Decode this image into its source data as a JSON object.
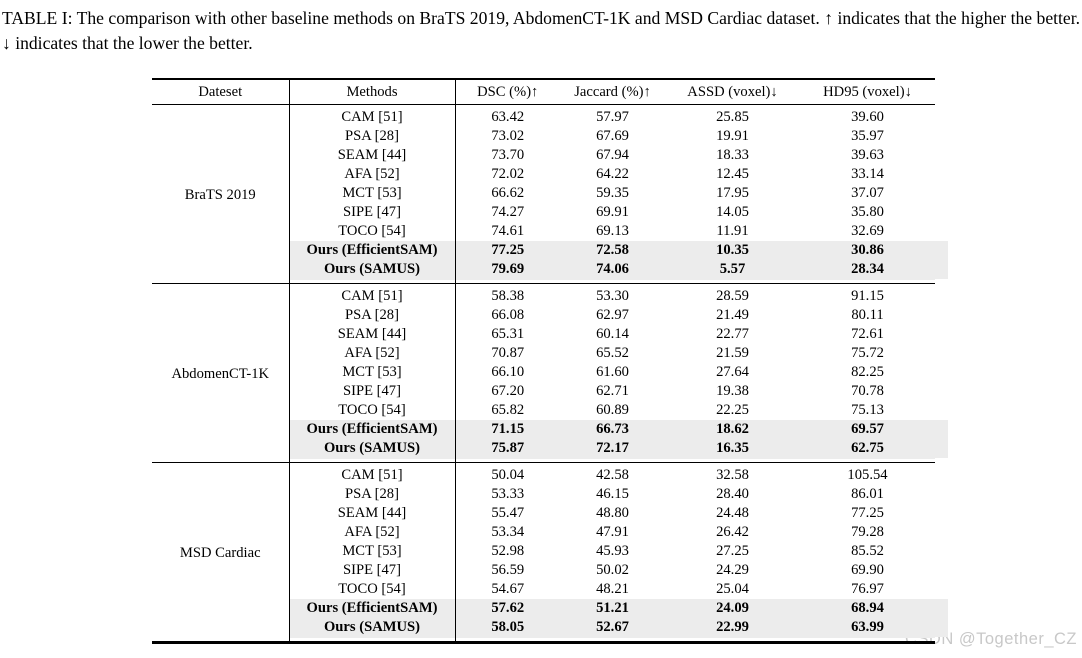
{
  "caption": "TABLE I: The comparison with other baseline methods on BraTS 2019, AbdomenCT-1K and MSD Cardiac dataset. ↑ indicates that the higher the better. ↓ indicates that the lower the better.",
  "watermark": "CSDN @Together_CZ",
  "colors": {
    "highlight_bg": "#ececec",
    "rule": "#000000",
    "watermark_text": "#c8c8c8"
  },
  "table": {
    "columns": [
      "Dateset",
      "Methods",
      "DSC (%)↑",
      "Jaccard (%)↑",
      "ASSD (voxel)↓",
      "HD95 (voxel)↓"
    ],
    "value_column_names": [
      "dsc",
      "jaccard",
      "assd",
      "hd95"
    ],
    "sections": [
      {
        "dataset": "BraTS 2019",
        "rows": [
          {
            "method": "CAM [51]",
            "values": [
              "63.42",
              "57.97",
              "25.85",
              "39.60"
            ],
            "highlight": false
          },
          {
            "method": "PSA [28]",
            "values": [
              "73.02",
              "67.69",
              "19.91",
              "35.97"
            ],
            "highlight": false
          },
          {
            "method": "SEAM [44]",
            "values": [
              "73.70",
              "67.94",
              "18.33",
              "39.63"
            ],
            "highlight": false
          },
          {
            "method": "AFA [52]",
            "values": [
              "72.02",
              "64.22",
              "12.45",
              "33.14"
            ],
            "highlight": false
          },
          {
            "method": "MCT [53]",
            "values": [
              "66.62",
              "59.35",
              "17.95",
              "37.07"
            ],
            "highlight": false
          },
          {
            "method": "SIPE [47]",
            "values": [
              "74.27",
              "69.91",
              "14.05",
              "35.80"
            ],
            "highlight": false
          },
          {
            "method": "TOCO [54]",
            "values": [
              "74.61",
              "69.13",
              "11.91",
              "32.69"
            ],
            "highlight": false
          },
          {
            "method": "Ours (EfficientSAM)",
            "values": [
              "77.25",
              "72.58",
              "10.35",
              "30.86"
            ],
            "highlight": true
          },
          {
            "method": "Ours (SAMUS)",
            "values": [
              "79.69",
              "74.06",
              "5.57",
              "28.34"
            ],
            "highlight": true
          }
        ]
      },
      {
        "dataset": "AbdomenCT-1K",
        "rows": [
          {
            "method": "CAM [51]",
            "values": [
              "58.38",
              "53.30",
              "28.59",
              "91.15"
            ],
            "highlight": false
          },
          {
            "method": "PSA [28]",
            "values": [
              "66.08",
              "62.97",
              "21.49",
              "80.11"
            ],
            "highlight": false
          },
          {
            "method": "SEAM [44]",
            "values": [
              "65.31",
              "60.14",
              "22.77",
              "72.61"
            ],
            "highlight": false
          },
          {
            "method": "AFA [52]",
            "values": [
              "70.87",
              "65.52",
              "21.59",
              "75.72"
            ],
            "highlight": false
          },
          {
            "method": "MCT [53]",
            "values": [
              "66.10",
              "61.60",
              "27.64",
              "82.25"
            ],
            "highlight": false
          },
          {
            "method": "SIPE [47]",
            "values": [
              "67.20",
              "62.71",
              "19.38",
              "70.78"
            ],
            "highlight": false
          },
          {
            "method": "TOCO [54]",
            "values": [
              "65.82",
              "60.89",
              "22.25",
              "75.13"
            ],
            "highlight": false
          },
          {
            "method": "Ours (EfficientSAM)",
            "values": [
              "71.15",
              "66.73",
              "18.62",
              "69.57"
            ],
            "highlight": true
          },
          {
            "method": "Ours (SAMUS)",
            "values": [
              "75.87",
              "72.17",
              "16.35",
              "62.75"
            ],
            "highlight": true
          }
        ]
      },
      {
        "dataset": "MSD Cardiac",
        "rows": [
          {
            "method": "CAM [51]",
            "values": [
              "50.04",
              "42.58",
              "32.58",
              "105.54"
            ],
            "highlight": false
          },
          {
            "method": "PSA [28]",
            "values": [
              "53.33",
              "46.15",
              "28.40",
              "86.01"
            ],
            "highlight": false
          },
          {
            "method": "SEAM [44]",
            "values": [
              "55.47",
              "48.80",
              "24.48",
              "77.25"
            ],
            "highlight": false
          },
          {
            "method": "AFA [52]",
            "values": [
              "53.34",
              "47.91",
              "26.42",
              "79.28"
            ],
            "highlight": false
          },
          {
            "method": "MCT [53]",
            "values": [
              "52.98",
              "45.93",
              "27.25",
              "85.52"
            ],
            "highlight": false
          },
          {
            "method": "SIPE [47]",
            "values": [
              "56.59",
              "50.02",
              "24.29",
              "69.90"
            ],
            "highlight": false
          },
          {
            "method": "TOCO [54]",
            "values": [
              "54.67",
              "48.21",
              "25.04",
              "76.97"
            ],
            "highlight": false
          },
          {
            "method": "Ours (EfficientSAM)",
            "values": [
              "57.62",
              "51.21",
              "24.09",
              "68.94"
            ],
            "highlight": true
          },
          {
            "method": "Ours (SAMUS)",
            "values": [
              "58.05",
              "52.67",
              "22.99",
              "63.99"
            ],
            "highlight": true
          }
        ]
      }
    ]
  }
}
